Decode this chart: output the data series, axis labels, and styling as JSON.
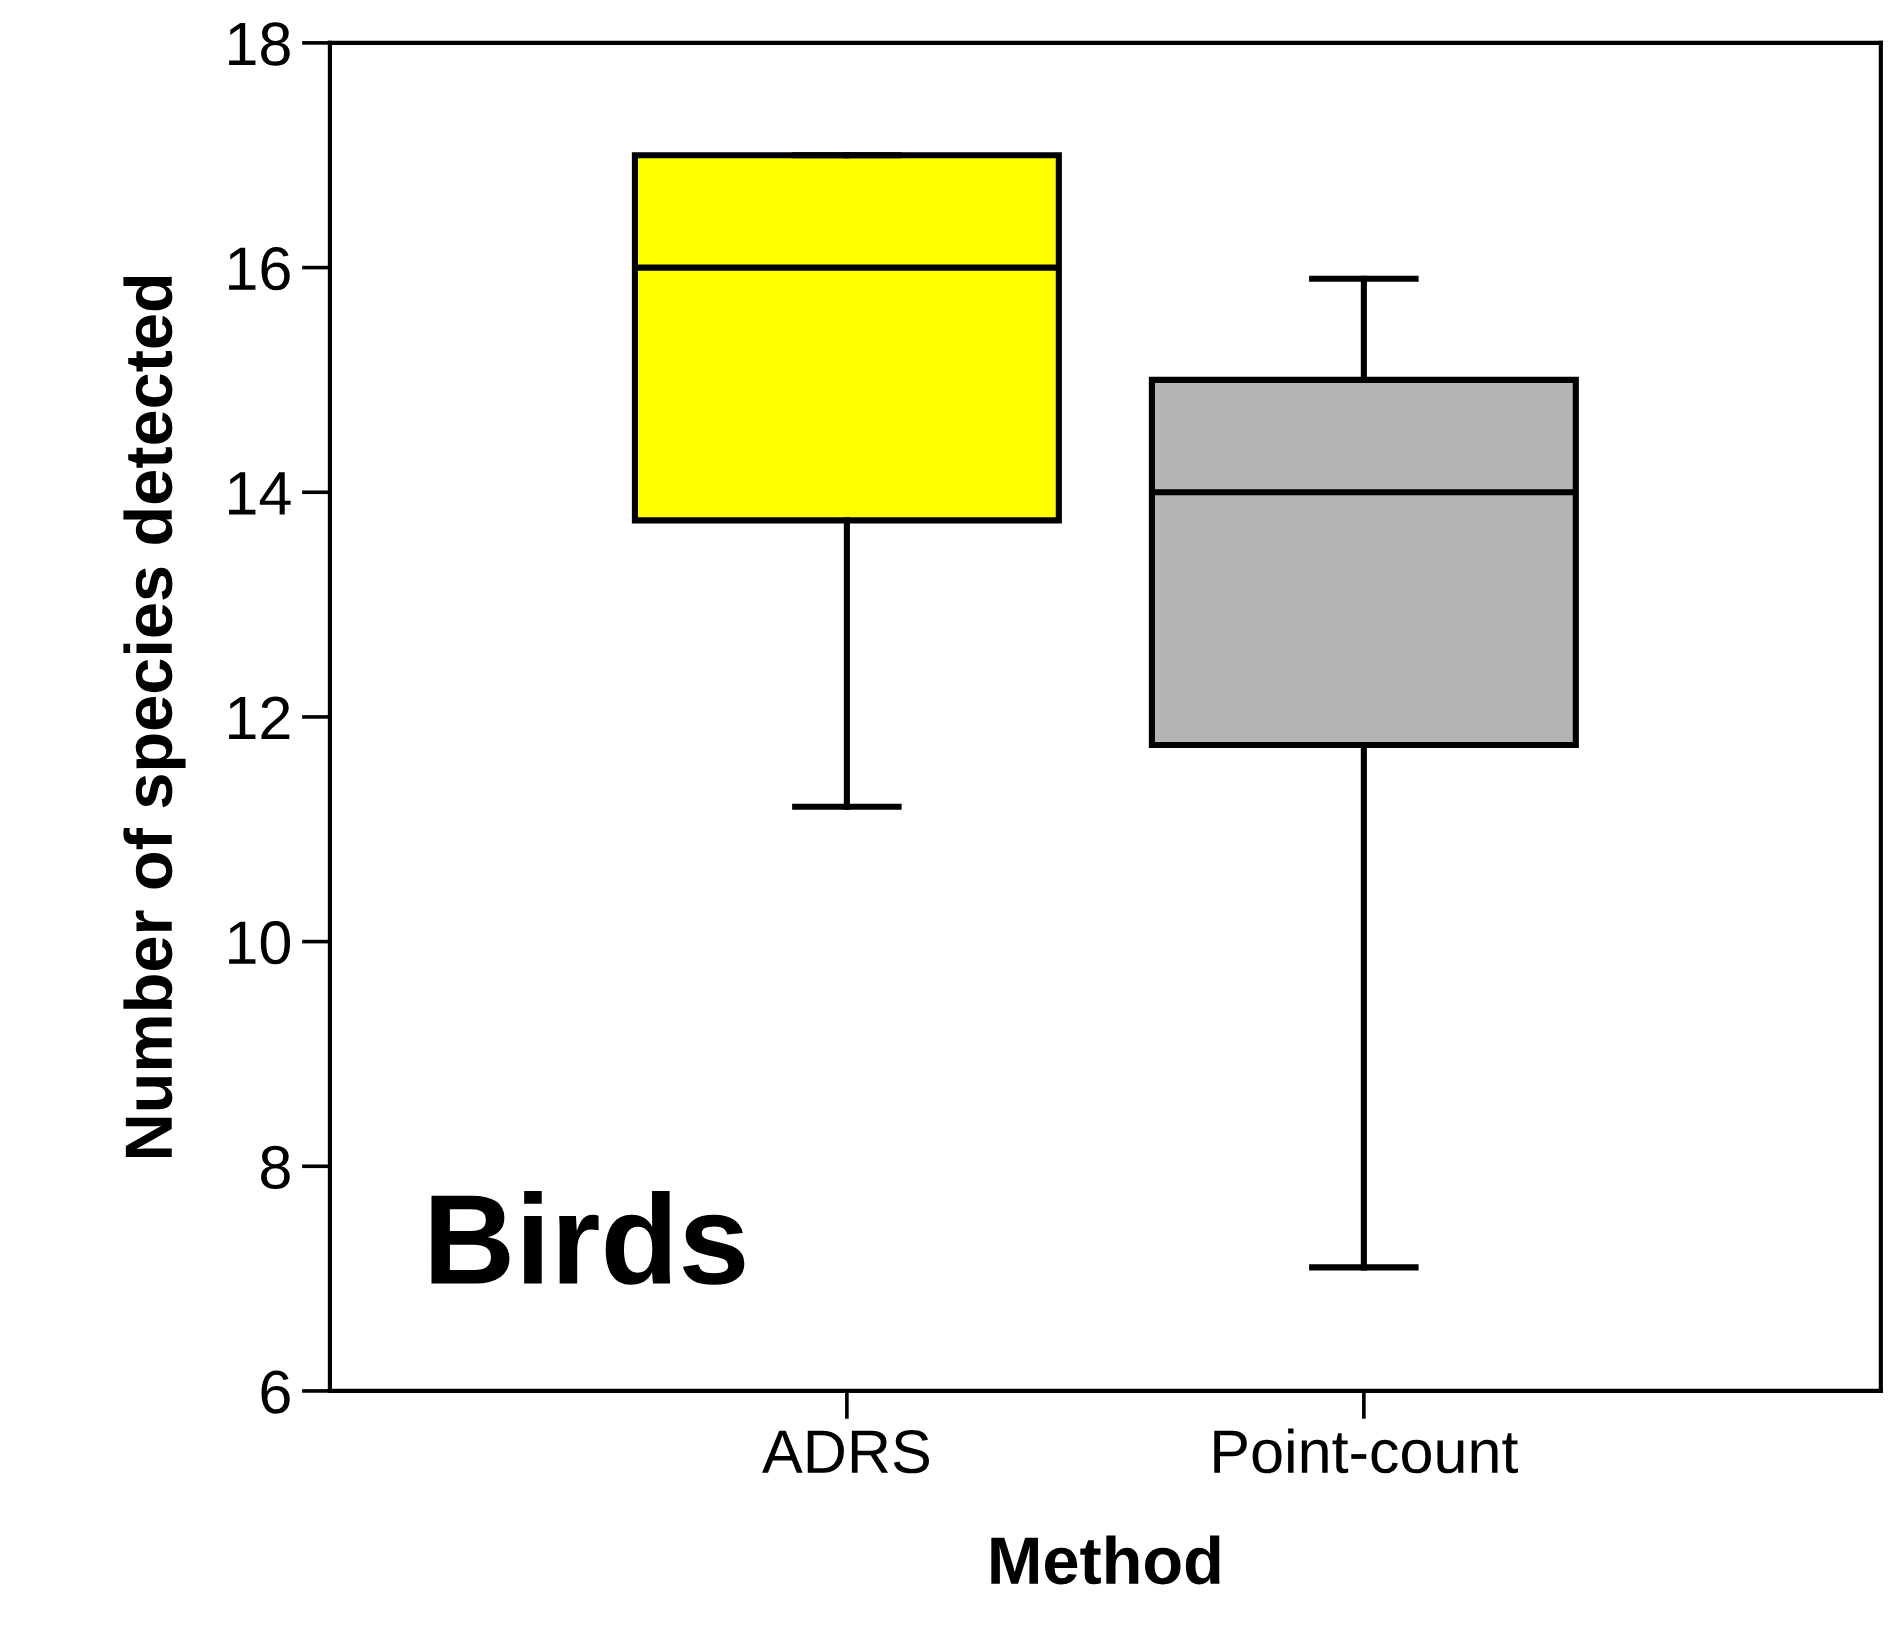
{
  "chart_data": {
    "type": "box",
    "xlabel": "Method",
    "ylabel": "Number of species detected",
    "categories": [
      "ADRS",
      "Point-count"
    ],
    "colors": [
      "#ffff00",
      "#b4b4b4"
    ],
    "boxes": [
      {
        "low": 11.2,
        "q1": 13.75,
        "median": 16,
        "q3": 17,
        "high": 17
      },
      {
        "low": 7.1,
        "q1": 11.75,
        "median": 14,
        "q3": 15,
        "high": 15.9
      }
    ],
    "ylim": [
      6,
      18
    ],
    "yticks": [
      6,
      8,
      10,
      12,
      14,
      16,
      18
    ],
    "annotations": [
      "Birds"
    ],
    "grid": false
  }
}
